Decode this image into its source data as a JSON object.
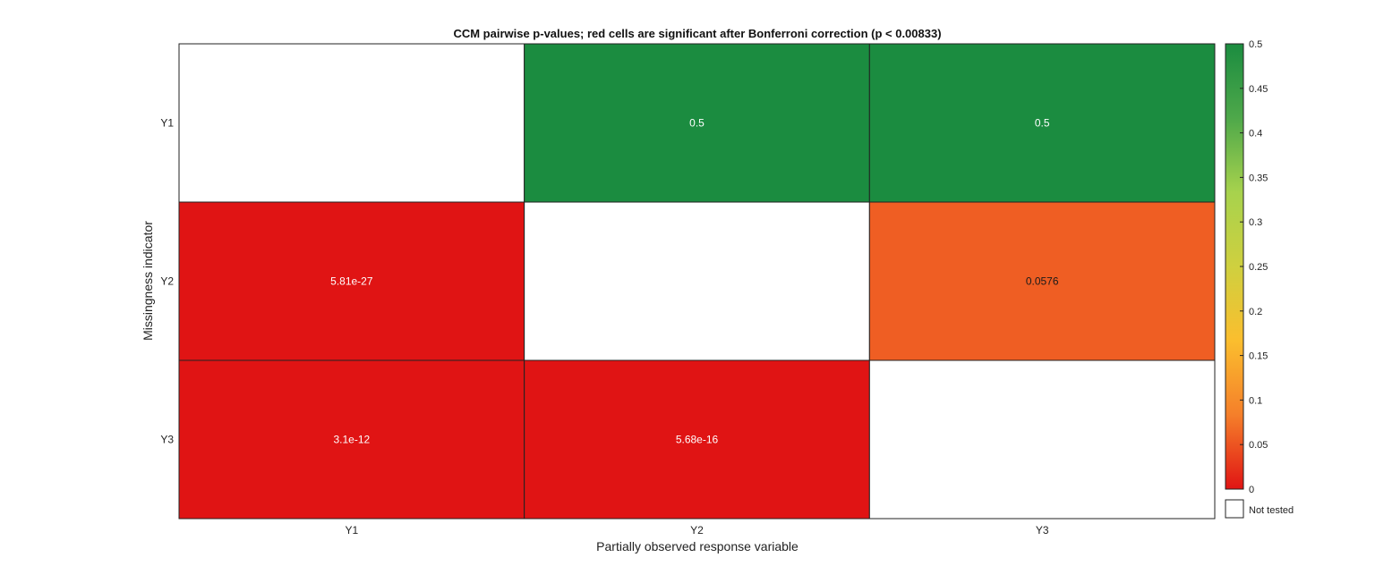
{
  "chart_data": {
    "type": "heatmap",
    "title": "CCM pairwise p-values; red cells are significant after Bonferroni correction (p < 0.00833)",
    "xlabel": "Partially observed response variable",
    "ylabel": "Missingness indicator",
    "x_categories": [
      "Y1",
      "Y2",
      "Y3"
    ],
    "y_categories": [
      "Y1",
      "Y2",
      "Y3"
    ],
    "cells": [
      {
        "row": "Y1",
        "col": "Y1",
        "value": null,
        "label": ""
      },
      {
        "row": "Y1",
        "col": "Y2",
        "value": 0.5,
        "label": "0.5"
      },
      {
        "row": "Y1",
        "col": "Y3",
        "value": 0.5,
        "label": "0.5"
      },
      {
        "row": "Y2",
        "col": "Y1",
        "value": 5.81e-27,
        "label": "5.81e-27"
      },
      {
        "row": "Y2",
        "col": "Y2",
        "value": null,
        "label": ""
      },
      {
        "row": "Y2",
        "col": "Y3",
        "value": 0.0576,
        "label": "0.0576"
      },
      {
        "row": "Y3",
        "col": "Y1",
        "value": 3.1e-12,
        "label": "3.1e-12"
      },
      {
        "row": "Y3",
        "col": "Y2",
        "value": 5.68e-16,
        "label": "5.68e-16"
      },
      {
        "row": "Y3",
        "col": "Y3",
        "value": null,
        "label": ""
      }
    ],
    "significance_threshold": 0.00833,
    "colorbar": {
      "range": [
        0,
        0.5
      ],
      "ticks": [
        "0",
        "0.05",
        "0.1",
        "0.15",
        "0.2",
        "0.25",
        "0.3",
        "0.35",
        "0.4",
        "0.45",
        "0.5"
      ],
      "colors": [
        "#e01414",
        "#f57f2a",
        "#fbbe2e",
        "#cfd03f",
        "#a7d24d",
        "#4ea84a",
        "#1b8c40"
      ],
      "not_tested_label": "Not tested"
    },
    "colors": {
      "significant": "#e01414",
      "mid": "#f57d2a",
      "high": "#1b8c40",
      "not_tested": "#ffffff"
    }
  }
}
